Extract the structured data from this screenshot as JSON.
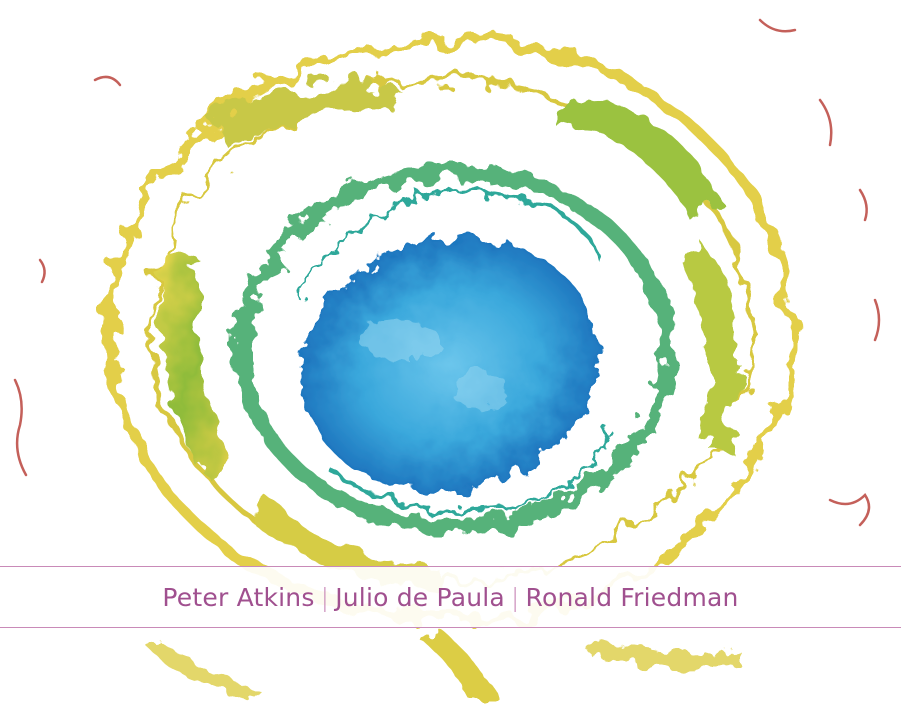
{
  "cover": {
    "authors": [
      "Peter Atkins",
      "Julio de Paula",
      "Ronald Friedman"
    ],
    "separator": "|"
  },
  "colors": {
    "accent": "#a0508f",
    "rule": "#c98ab8",
    "blue_core": "#3aa8dc",
    "blue_deep": "#1a6fb8",
    "teal": "#2fb09a",
    "green": "#6db33f",
    "yellow": "#e6d24a",
    "red_trace": "#c4605a"
  }
}
